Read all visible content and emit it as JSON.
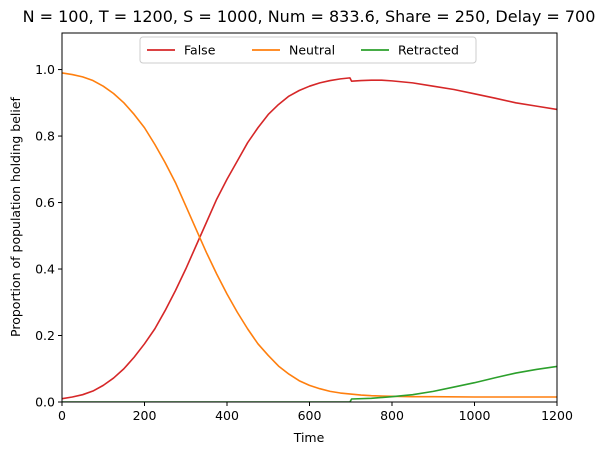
{
  "chart_data": {
    "type": "line",
    "title": "N = 100, T = 1200, S = 1000, Num = 833.6, Share = 250, Delay = 700",
    "xlabel": "Time",
    "ylabel": "Proportion of population holding belief",
    "xlim": [
      0,
      1200
    ],
    "ylim": [
      0,
      1.11
    ],
    "xticks": [
      0,
      200,
      400,
      600,
      800,
      1000,
      1200
    ],
    "yticks": [
      0.0,
      0.2,
      0.4,
      0.6,
      0.8,
      1.0
    ],
    "grid": false,
    "legend_position": "top-center",
    "series": [
      {
        "name": "False",
        "color": "#d62728",
        "points": [
          [
            0,
            0.01
          ],
          [
            25,
            0.015
          ],
          [
            50,
            0.022
          ],
          [
            75,
            0.033
          ],
          [
            100,
            0.05
          ],
          [
            125,
            0.072
          ],
          [
            150,
            0.1
          ],
          [
            175,
            0.135
          ],
          [
            200,
            0.175
          ],
          [
            225,
            0.22
          ],
          [
            250,
            0.275
          ],
          [
            275,
            0.335
          ],
          [
            300,
            0.4
          ],
          [
            325,
            0.47
          ],
          [
            350,
            0.54
          ],
          [
            375,
            0.61
          ],
          [
            400,
            0.67
          ],
          [
            425,
            0.725
          ],
          [
            450,
            0.78
          ],
          [
            475,
            0.825
          ],
          [
            500,
            0.865
          ],
          [
            525,
            0.895
          ],
          [
            550,
            0.92
          ],
          [
            575,
            0.937
          ],
          [
            600,
            0.95
          ],
          [
            625,
            0.96
          ],
          [
            650,
            0.967
          ],
          [
            675,
            0.972
          ],
          [
            698,
            0.975
          ],
          [
            702,
            0.965
          ],
          [
            725,
            0.967
          ],
          [
            750,
            0.968
          ],
          [
            775,
            0.968
          ],
          [
            800,
            0.966
          ],
          [
            850,
            0.96
          ],
          [
            900,
            0.95
          ],
          [
            950,
            0.94
          ],
          [
            1000,
            0.927
          ],
          [
            1050,
            0.914
          ],
          [
            1100,
            0.9
          ],
          [
            1150,
            0.89
          ],
          [
            1200,
            0.88
          ]
        ]
      },
      {
        "name": "Neutral",
        "color": "#ff7f0e",
        "points": [
          [
            0,
            0.99
          ],
          [
            25,
            0.985
          ],
          [
            50,
            0.978
          ],
          [
            75,
            0.967
          ],
          [
            100,
            0.95
          ],
          [
            125,
            0.928
          ],
          [
            150,
            0.9
          ],
          [
            175,
            0.865
          ],
          [
            200,
            0.825
          ],
          [
            225,
            0.775
          ],
          [
            250,
            0.72
          ],
          [
            275,
            0.66
          ],
          [
            300,
            0.59
          ],
          [
            325,
            0.52
          ],
          [
            350,
            0.45
          ],
          [
            375,
            0.385
          ],
          [
            400,
            0.325
          ],
          [
            425,
            0.27
          ],
          [
            450,
            0.22
          ],
          [
            475,
            0.175
          ],
          [
            500,
            0.14
          ],
          [
            525,
            0.108
          ],
          [
            550,
            0.084
          ],
          [
            575,
            0.064
          ],
          [
            600,
            0.05
          ],
          [
            625,
            0.04
          ],
          [
            650,
            0.032
          ],
          [
            675,
            0.027
          ],
          [
            700,
            0.024
          ],
          [
            725,
            0.021
          ],
          [
            750,
            0.019
          ],
          [
            800,
            0.017
          ],
          [
            850,
            0.016
          ],
          [
            900,
            0.016
          ],
          [
            1000,
            0.015
          ],
          [
            1100,
            0.015
          ],
          [
            1200,
            0.015
          ]
        ]
      },
      {
        "name": "Retracted",
        "color": "#2ca02c",
        "points": [
          [
            0,
            0.0
          ],
          [
            698,
            0.0
          ],
          [
            702,
            0.009
          ],
          [
            750,
            0.011
          ],
          [
            800,
            0.016
          ],
          [
            850,
            0.022
          ],
          [
            900,
            0.032
          ],
          [
            950,
            0.045
          ],
          [
            1000,
            0.058
          ],
          [
            1050,
            0.073
          ],
          [
            1100,
            0.087
          ],
          [
            1150,
            0.098
          ],
          [
            1200,
            0.107
          ]
        ]
      }
    ]
  }
}
